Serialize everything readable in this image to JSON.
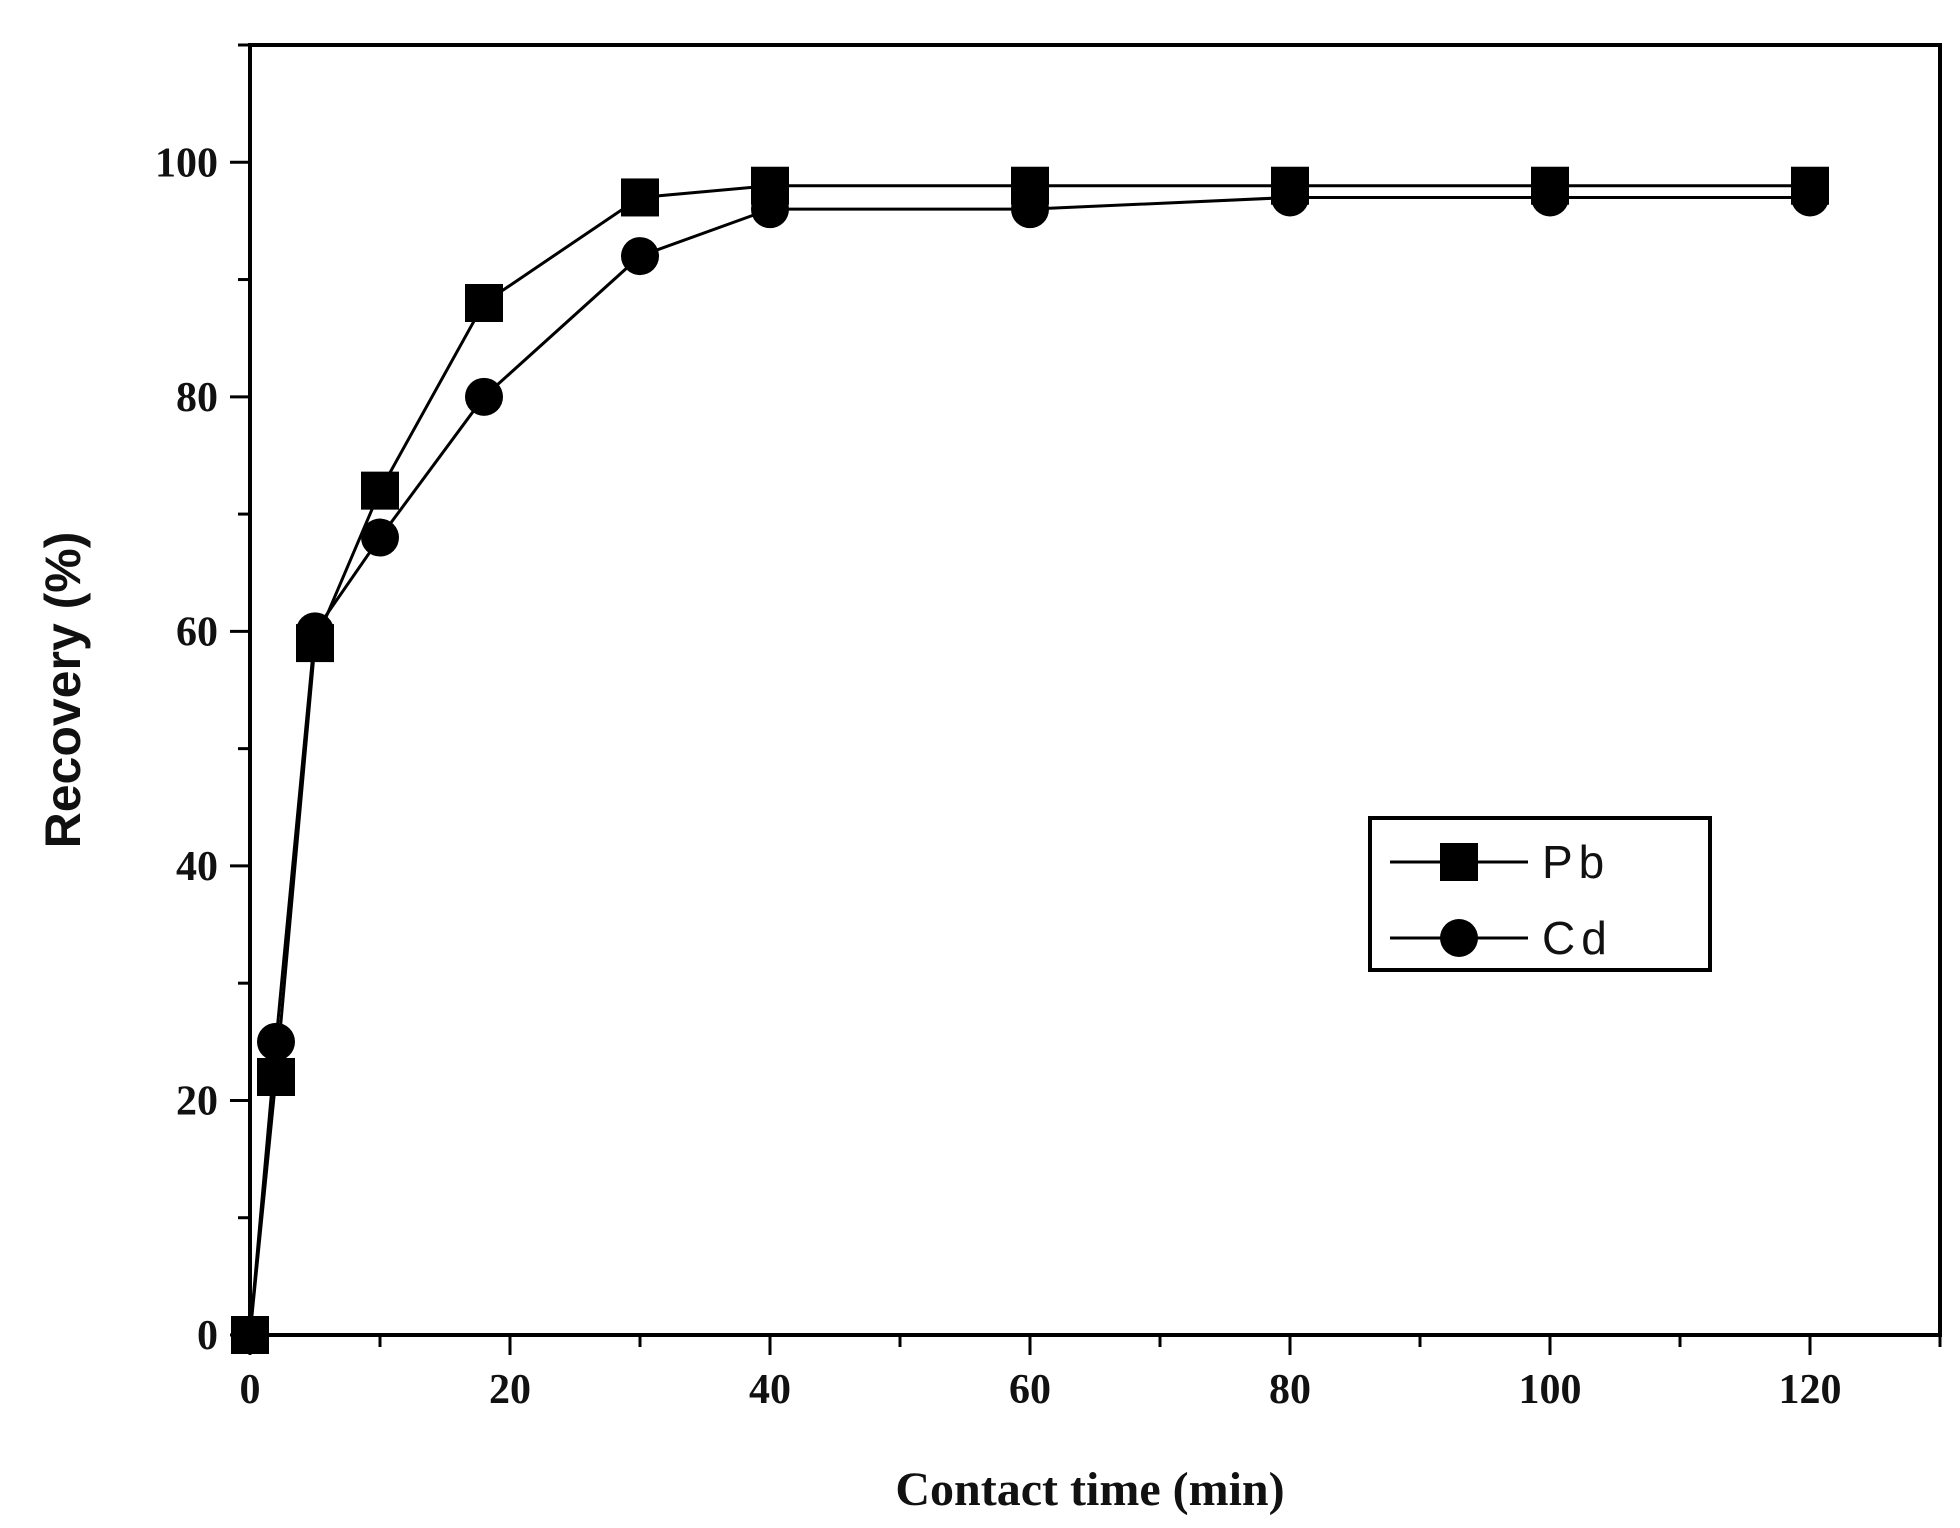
{
  "chart_data": {
    "type": "line",
    "title": "",
    "xlabel": "Contact time (min)",
    "ylabel": "Recovery (%)",
    "xlim": [
      0,
      130
    ],
    "ylim": [
      0,
      110
    ],
    "xticks": [
      0,
      20,
      40,
      60,
      80,
      100,
      120
    ],
    "xtick_labels": [
      "0",
      "20",
      "40",
      "60",
      "80",
      "100",
      "120"
    ],
    "yticks": [
      0,
      20,
      40,
      60,
      80,
      100
    ],
    "ytick_labels": [
      "0",
      "20",
      "40",
      "60",
      "80",
      "100"
    ],
    "grid": false,
    "legend_position": "right-middle",
    "series": [
      {
        "name": "Pb",
        "marker": "square",
        "color": "#000000",
        "x": [
          0,
          2,
          5,
          10,
          18,
          30,
          40,
          60,
          80,
          100,
          120
        ],
        "y": [
          0,
          22,
          59,
          72,
          88,
          97,
          98,
          98,
          98,
          98,
          98
        ]
      },
      {
        "name": "Cd",
        "marker": "circle",
        "color": "#000000",
        "x": [
          0,
          2,
          5,
          10,
          18,
          30,
          40,
          60,
          80,
          100,
          120
        ],
        "y": [
          0,
          25,
          60,
          68,
          80,
          92,
          96,
          96,
          97,
          97,
          97
        ]
      }
    ]
  }
}
